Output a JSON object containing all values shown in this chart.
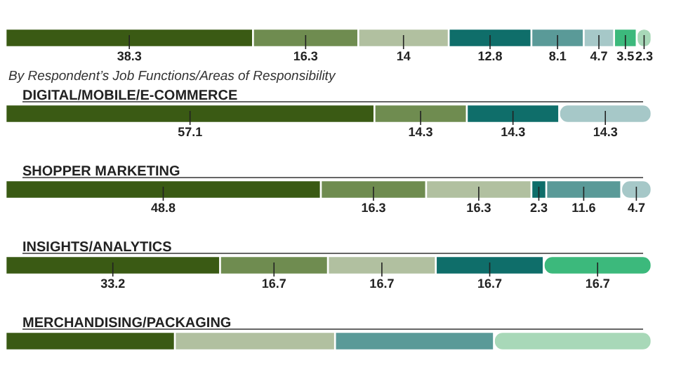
{
  "chart_data": {
    "type": "bar",
    "orientation": "horizontal",
    "stacked": true,
    "subtitle": "By Respondent’s Job Functions/Areas of Responsibility",
    "categories": [
      null,
      "DIGITAL/MOBILE/E-COMMERCE",
      "SHOPPER MARKETING",
      "INSIGHTS/ANALYTICS",
      "MERCHANDISING/PACKAGING"
    ],
    "series": [
      {
        "color": "#3a5a14",
        "values": [
          38.3,
          57.1,
          48.8,
          33.2,
          26.2
        ],
        "value_labels": [
          "38.3",
          "57.1",
          "48.8",
          "33.2",
          null
        ]
      },
      {
        "color": "#6f8c50",
        "values": [
          16.3,
          14.3,
          16.3,
          16.7,
          null
        ],
        "value_labels": [
          "16.3",
          "14.3",
          "16.3",
          "16.7",
          null
        ]
      },
      {
        "color": "#b1c0a0",
        "values": [
          14,
          null,
          16.3,
          16.7,
          24.8
        ],
        "value_labels": [
          "14",
          null,
          "16.3",
          "16.7",
          null
        ]
      },
      {
        "color": "#0f6e6a",
        "values": [
          12.8,
          14.3,
          2.3,
          16.7,
          null
        ],
        "value_labels": [
          "12.8",
          "14.3",
          "2.3",
          "16.7",
          null
        ]
      },
      {
        "color": "#5a9a98",
        "values": [
          8.1,
          null,
          11.6,
          null,
          24.6
        ],
        "value_labels": [
          "8.1",
          null,
          "11.6",
          null,
          null
        ]
      },
      {
        "color": "#a6c8c8",
        "values": [
          4.7,
          14.3,
          4.7,
          null,
          null
        ],
        "value_labels": [
          "4.7",
          "14.3",
          "4.7",
          null,
          null
        ]
      },
      {
        "color": "#3cb97c",
        "values": [
          3.5,
          null,
          null,
          16.7,
          null
        ],
        "value_labels": [
          "3.5",
          null,
          null,
          "16.7",
          null
        ]
      },
      {
        "color": "#a8d8b8",
        "values": [
          2.3,
          null,
          null,
          null,
          24.4
        ],
        "value_labels": [
          "2.3",
          null,
          null,
          null,
          null
        ]
      }
    ]
  }
}
